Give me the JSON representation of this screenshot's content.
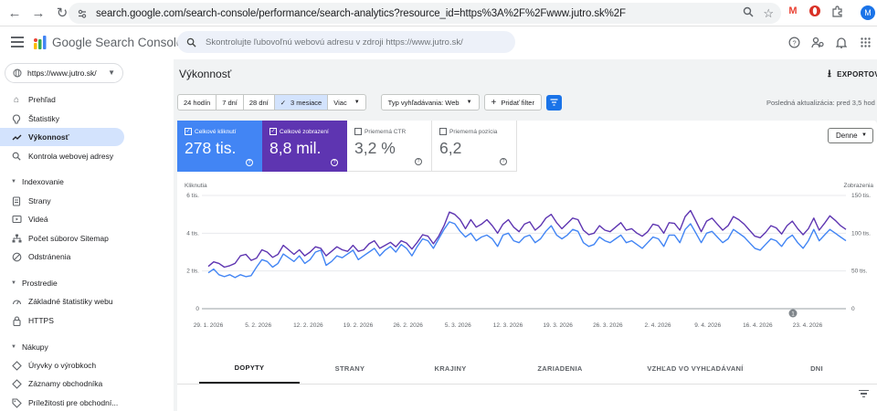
{
  "browser": {
    "url": "search.google.com/search-console/performance/search-analytics?resource_id=https%3A%2F%2Fwww.jutro.sk%2F",
    "avatar_letter": "M"
  },
  "header": {
    "app_title": "Google Search Console",
    "search_placeholder": "Skontrolujte ľubovoľnú webovú adresu v zdroji https://www.jutro.sk/"
  },
  "sidebar": {
    "property": "https://www.jutro.sk/",
    "items_top": [
      {
        "label": "Prehľad",
        "icon": "home-icon"
      },
      {
        "label": "Štatistiky",
        "icon": "insights-icon"
      },
      {
        "label": "Výkonnosť",
        "icon": "trending-icon"
      },
      {
        "label": "Kontrola webovej adresy",
        "icon": "search-icon"
      }
    ],
    "sections": [
      {
        "title": "Indexovanie",
        "items": [
          "Strany",
          "Videá",
          "Počet súborov Sitemap",
          "Odstránenia"
        ]
      },
      {
        "title": "Prostredie",
        "items": [
          "Základné štatistiky webu",
          "HTTPS"
        ]
      },
      {
        "title": "Nákupy",
        "items": [
          "Úryvky o výrobkoch",
          "Záznamy obchodníka",
          "Príležitosti pre obchodní..."
        ]
      }
    ]
  },
  "main": {
    "title": "Výkonnosť",
    "export_label": "EXPORTOV",
    "date_ranges": [
      "24 hodín",
      "7 dní",
      "28 dní",
      "3 mesiace",
      "Viac"
    ],
    "selected_range": "3 mesiace",
    "search_type_chip": "Typ vyhľadávania: Web",
    "add_filter_label": "Pridať filter",
    "last_update": "Posledná aktualizácia: pred 3,5 hod",
    "granularity": "Denne"
  },
  "metrics": [
    {
      "label": "Celkové kliknutí",
      "value": "278 tis.",
      "checked": true
    },
    {
      "label": "Celkové zobrazení",
      "value": "8,8 mil.",
      "checked": true
    },
    {
      "label": "Priemerná CTR",
      "value": "3,2 %",
      "checked": false
    },
    {
      "label": "Priemerná pozícia",
      "value": "6,2",
      "checked": false
    }
  ],
  "chart_data": {
    "type": "line",
    "left_axis_title": "Kliknutia",
    "right_axis_title": "Zobrazenia",
    "left_ticks": [
      "6 tis.",
      "4 tis.",
      "2 tis.",
      "0"
    ],
    "right_ticks": [
      "150 tis.",
      "100 tis.",
      "50 tis.",
      "0"
    ],
    "ylim_left": [
      0,
      6000
    ],
    "ylim_right": [
      0,
      150000
    ],
    "x_labels": [
      "29. 1. 2026",
      "5. 2. 2026",
      "12. 2. 2026",
      "19. 2. 2026",
      "26. 2. 2026",
      "5. 3. 2026",
      "12. 3. 2026",
      "19. 3. 2026",
      "26. 3. 2026",
      "2. 4. 2026",
      "9. 4. 2026",
      "16. 4. 2026",
      "23. 4. 2026"
    ],
    "annotation_marker": "1",
    "series": [
      {
        "name": "Kliknutia",
        "color": "#4285f4",
        "axis": "left",
        "values": [
          1900,
          2100,
          1800,
          1700,
          1800,
          1650,
          1800,
          1700,
          1750,
          2200,
          2600,
          2500,
          2200,
          2400,
          2900,
          2700,
          2500,
          2800,
          2400,
          2600,
          3000,
          3100,
          2300,
          2500,
          2800,
          2700,
          2900,
          3100,
          2600,
          2800,
          3000,
          3200,
          2800,
          3100,
          3300,
          3000,
          3400,
          3200,
          2800,
          3300,
          3700,
          3600,
          3200,
          3700,
          4200,
          4600,
          4500,
          4100,
          3800,
          4000,
          3600,
          3800,
          3900,
          3700,
          3300,
          3900,
          4000,
          3600,
          3500,
          3800,
          3900,
          3500,
          3700,
          4100,
          4400,
          3900,
          3700,
          3900,
          4200,
          4100,
          3500,
          3300,
          3400,
          3800,
          3600,
          3500,
          3700,
          3900,
          3500,
          3600,
          3400,
          3200,
          3500,
          3800,
          3700,
          3300,
          3900,
          3900,
          3500,
          4200,
          4500,
          4000,
          3500,
          4000,
          4100,
          3800,
          3500,
          3700,
          4200,
          4000,
          3800,
          3500,
          3200,
          3100,
          3400,
          3700,
          3600,
          3300,
          3700,
          3900,
          3500,
          3200,
          3600,
          4200,
          3600,
          3900,
          4200,
          4000,
          3800,
          3600
        ]
      },
      {
        "name": "Zobrazenia",
        "color": "#5e35b1",
        "axis": "right",
        "values": [
          56000,
          62000,
          60000,
          55000,
          57000,
          60000,
          70000,
          72000,
          64000,
          67000,
          78000,
          75000,
          68000,
          72000,
          84000,
          78000,
          72000,
          78000,
          70000,
          75000,
          82000,
          80000,
          70000,
          76000,
          82000,
          78000,
          76000,
          84000,
          76000,
          78000,
          86000,
          90000,
          80000,
          84000,
          88000,
          82000,
          90000,
          87000,
          79000,
          88000,
          98000,
          96000,
          86000,
          96000,
          110000,
          128000,
          125000,
          118000,
          106000,
          118000,
          108000,
          112000,
          118000,
          110000,
          100000,
          112000,
          118000,
          108000,
          102000,
          112000,
          115000,
          104000,
          110000,
          120000,
          125000,
          114000,
          106000,
          113000,
          120000,
          118000,
          104000,
          98000,
          100000,
          110000,
          104000,
          102000,
          108000,
          114000,
          104000,
          106000,
          100000,
          96000,
          102000,
          112000,
          110000,
          100000,
          114000,
          113000,
          104000,
          122000,
          130000,
          116000,
          102000,
          116000,
          120000,
          112000,
          104000,
          110000,
          122000,
          118000,
          112000,
          104000,
          96000,
          94000,
          101000,
          110000,
          107000,
          99000,
          110000,
          116000,
          106000,
          98000,
          106000,
          120000,
          104000,
          113000,
          123000,
          117000,
          110000,
          105000
        ]
      }
    ]
  }
}
